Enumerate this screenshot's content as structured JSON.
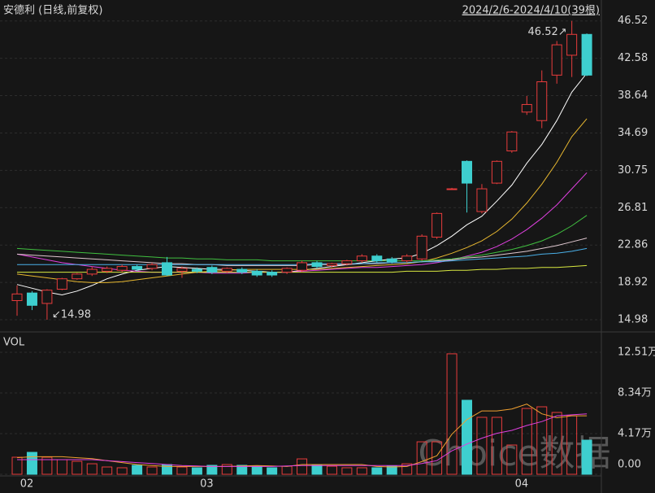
{
  "header": {
    "title": "安德利 (日线,前复权)",
    "range": "2024/2/6-2024/4/10(39根)"
  },
  "watermark": "Choice数据",
  "chart_data": [
    {
      "type": "candlestick",
      "up_color": "#e83c3c",
      "down_color": "#3ecfcf",
      "open": [
        17.0,
        17.8,
        16.7,
        18.2,
        19.3,
        19.8,
        20.1,
        20.2,
        20.6,
        20.4,
        21.0,
        20.1,
        20.3,
        20.5,
        20.1,
        20.3,
        20.1,
        20.0,
        20.0,
        20.2,
        21.0,
        20.7,
        20.9,
        21.2,
        21.7,
        21.4,
        21.2,
        21.4,
        23.7,
        28.8,
        31.7,
        26.4,
        29.4,
        32.8,
        36.9,
        36.0,
        40.8,
        42.9,
        45.1
      ],
      "high": [
        18.6,
        18.0,
        18.2,
        19.4,
        19.9,
        20.6,
        20.6,
        20.8,
        20.8,
        21.0,
        21.6,
        20.6,
        20.5,
        20.7,
        20.5,
        20.5,
        20.3,
        20.2,
        20.5,
        21.2,
        21.2,
        21.0,
        21.3,
        21.9,
        21.9,
        21.6,
        21.9,
        24.0,
        26.3,
        28.9,
        31.8,
        29.3,
        31.8,
        34.9,
        38.6,
        41.3,
        44.4,
        46.52,
        45.2
      ],
      "low": [
        15.4,
        16.0,
        14.98,
        18.1,
        19.2,
        19.6,
        19.9,
        20.0,
        20.1,
        20.2,
        19.6,
        19.4,
        19.9,
        19.8,
        19.9,
        19.8,
        19.5,
        19.5,
        19.8,
        20.0,
        20.4,
        20.5,
        20.7,
        21.0,
        21.0,
        20.9,
        21.0,
        21.2,
        23.5,
        28.7,
        26.3,
        26.2,
        29.3,
        32.6,
        36.6,
        35.2,
        39.9,
        40.6,
        40.7
      ],
      "close": [
        17.7,
        16.5,
        18.1,
        19.3,
        19.8,
        20.3,
        20.4,
        20.6,
        20.3,
        20.8,
        19.7,
        20.4,
        20.1,
        20.0,
        20.4,
        20.0,
        19.7,
        19.7,
        20.4,
        21.0,
        20.6,
        20.9,
        21.2,
        21.7,
        21.2,
        21.1,
        21.7,
        23.8,
        26.2,
        28.8,
        29.4,
        28.8,
        31.7,
        34.8,
        37.7,
        40.1,
        44.0,
        45.1,
        40.8
      ],
      "lines": [
        {
          "color": "#ffffff",
          "values": [
            18.7,
            18.3,
            17.9,
            17.6,
            18.0,
            18.6,
            19.3,
            19.8,
            20.2,
            20.4,
            20.6,
            20.5,
            20.4,
            20.3,
            20.3,
            20.2,
            20.1,
            20.0,
            20.0,
            20.2,
            20.4,
            20.6,
            20.8,
            21.0,
            21.2,
            21.4,
            21.5,
            22.0,
            22.8,
            23.8,
            25.0,
            25.9,
            27.5,
            29.2,
            31.5,
            33.5,
            36.0,
            39.0,
            41.0
          ]
        },
        {
          "color": "#e8b830",
          "values": [
            19.8,
            19.6,
            19.4,
            19.2,
            19.0,
            18.9,
            18.9,
            19.0,
            19.2,
            19.4,
            19.6,
            19.8,
            20.0,
            20.1,
            20.2,
            20.3,
            20.3,
            20.3,
            20.3,
            20.3,
            20.3,
            20.4,
            20.5,
            20.6,
            20.7,
            20.8,
            20.9,
            21.1,
            21.5,
            22.0,
            22.6,
            23.3,
            24.3,
            25.6,
            27.3,
            29.3,
            31.6,
            34.3,
            36.2
          ]
        },
        {
          "color": "#e040e0",
          "values": [
            21.9,
            21.6,
            21.3,
            21.0,
            20.8,
            20.6,
            20.4,
            20.2,
            20.1,
            20.0,
            20.0,
            20.0,
            20.0,
            19.9,
            19.9,
            19.9,
            20.0,
            20.0,
            20.0,
            20.1,
            20.2,
            20.3,
            20.4,
            20.5,
            20.5,
            20.6,
            20.7,
            20.8,
            21.0,
            21.3,
            21.7,
            22.1,
            22.7,
            23.5,
            24.5,
            25.7,
            27.1,
            28.8,
            30.5
          ]
        },
        {
          "color": "#40c040",
          "values": [
            22.5,
            22.4,
            22.3,
            22.2,
            22.1,
            22.0,
            21.9,
            21.8,
            21.7,
            21.6,
            21.5,
            21.5,
            21.4,
            21.4,
            21.3,
            21.3,
            21.3,
            21.2,
            21.2,
            21.2,
            21.2,
            21.2,
            21.2,
            21.2,
            21.2,
            21.2,
            21.2,
            21.2,
            21.3,
            21.4,
            21.6,
            21.8,
            22.1,
            22.4,
            22.8,
            23.3,
            24.0,
            24.9,
            26.0
          ]
        },
        {
          "color": "#e0c8d0",
          "values": [
            21.9,
            21.8,
            21.7,
            21.6,
            21.5,
            21.4,
            21.3,
            21.2,
            21.1,
            21.0,
            20.9,
            20.9,
            20.8,
            20.8,
            20.7,
            20.7,
            20.7,
            20.7,
            20.7,
            20.7,
            20.8,
            20.8,
            20.8,
            20.9,
            20.9,
            21.0,
            21.0,
            21.1,
            21.2,
            21.3,
            21.5,
            21.6,
            21.8,
            22.0,
            22.2,
            22.5,
            22.8,
            23.2,
            23.6
          ]
        },
        {
          "color": "#4ab0e8",
          "values": [
            20.8,
            20.8,
            20.8,
            20.8,
            20.8,
            20.8,
            20.8,
            20.8,
            20.8,
            20.8,
            20.8,
            20.8,
            20.8,
            20.8,
            20.8,
            20.8,
            20.8,
            20.8,
            20.8,
            20.8,
            20.9,
            20.9,
            20.9,
            20.9,
            21.0,
            21.0,
            21.0,
            21.1,
            21.1,
            21.2,
            21.3,
            21.4,
            21.5,
            21.6,
            21.7,
            21.9,
            22.0,
            22.2,
            22.5
          ]
        },
        {
          "color": "#d8e840",
          "values": [
            20.0,
            20.0,
            20.0,
            20.0,
            20.0,
            20.0,
            20.0,
            20.0,
            20.0,
            20.0,
            20.0,
            20.0,
            20.0,
            20.0,
            20.0,
            20.0,
            20.0,
            20.0,
            20.0,
            20.0,
            20.0,
            20.0,
            20.0,
            20.0,
            20.0,
            20.0,
            20.1,
            20.1,
            20.1,
            20.2,
            20.2,
            20.3,
            20.3,
            20.4,
            20.4,
            20.5,
            20.5,
            20.6,
            20.7
          ]
        }
      ],
      "annotations": [
        {
          "text": "↙14.98",
          "value": 14.98
        },
        {
          "text": "46.52↗",
          "value": 46.52
        }
      ],
      "ylim": [
        13.95,
        47.7
      ],
      "yticks": [
        46.52,
        42.58,
        38.64,
        34.69,
        30.75,
        26.81,
        22.86,
        18.92,
        14.98
      ],
      "grid": true
    },
    {
      "type": "bar",
      "title": "VOL",
      "categories": [
        "02",
        null,
        null,
        null,
        null,
        null,
        null,
        null,
        null,
        null,
        null,
        null,
        "03",
        null,
        null,
        null,
        null,
        null,
        null,
        null,
        null,
        null,
        null,
        null,
        null,
        null,
        null,
        null,
        null,
        null,
        null,
        null,
        null,
        "04",
        null,
        null,
        null,
        null,
        null
      ],
      "values": [
        1.75,
        2.25,
        1.75,
        1.5,
        1.33,
        1.08,
        0.75,
        0.67,
        0.92,
        0.75,
        1.0,
        0.75,
        0.67,
        0.92,
        1.0,
        0.92,
        0.83,
        0.67,
        0.83,
        1.58,
        1.0,
        0.83,
        0.67,
        0.67,
        0.67,
        0.83,
        1.08,
        3.33,
        3.33,
        12.35,
        7.59,
        5.84,
        5.84,
        3.0,
        6.75,
        6.92,
        6.34,
        6.0,
        3.5
      ],
      "lines": [
        {
          "color": "#f0a030",
          "values": [
            1.7,
            1.8,
            1.8,
            1.8,
            1.7,
            1.6,
            1.4,
            1.2,
            1.0,
            0.9,
            0.8,
            0.8,
            0.8,
            0.8,
            0.8,
            0.85,
            0.9,
            0.85,
            0.8,
            1.0,
            1.0,
            1.0,
            1.0,
            1.0,
            0.8,
            0.75,
            0.8,
            1.3,
            1.9,
            4.1,
            5.6,
            6.5,
            6.5,
            6.7,
            7.2,
            6.2,
            5.8,
            6.0,
            6.0
          ]
        },
        {
          "color": "#e040e0",
          "values": [
            1.5,
            1.5,
            1.5,
            1.5,
            1.5,
            1.5,
            1.4,
            1.3,
            1.2,
            1.1,
            1.0,
            0.9,
            0.85,
            0.8,
            0.8,
            0.8,
            0.8,
            0.8,
            0.85,
            0.9,
            0.9,
            0.9,
            0.9,
            0.9,
            0.9,
            0.9,
            0.9,
            1.1,
            1.4,
            2.4,
            3.1,
            3.7,
            4.2,
            4.5,
            5.0,
            5.4,
            6.0,
            6.1,
            6.2
          ]
        }
      ],
      "ylim": [
        0,
        13.76
      ],
      "yticks": [
        {
          "value": 12.51,
          "label": "12.51万"
        },
        {
          "value": 8.34,
          "label": "8.34万"
        },
        {
          "value": 4.17,
          "label": "4.17万"
        },
        {
          "value": 0,
          "label": "0.00"
        }
      ],
      "grid": true
    }
  ]
}
